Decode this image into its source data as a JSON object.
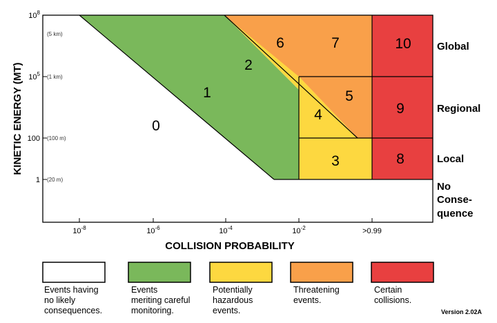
{
  "chart_data": {
    "type": "heatmap",
    "title": "",
    "xlabel": "COLLISION PROBABILITY",
    "ylabel": "KINETIC ENERGY (MT)",
    "x_ticks": [
      {
        "base": "10",
        "exp": "-8"
      },
      {
        "base": "10",
        "exp": "-6"
      },
      {
        "base": "10",
        "exp": "-4"
      },
      {
        "base": "10",
        "exp": "-2"
      },
      {
        "base": ">0.99",
        "exp": ""
      }
    ],
    "y_ticks": [
      {
        "base": "1",
        "exp": "",
        "size": "(20 m)"
      },
      {
        "base": "100",
        "exp": "",
        "size": "(100 m)"
      },
      {
        "base": "10",
        "exp": "5",
        "size": "(1 km)"
      },
      {
        "base": "10",
        "exp": "8",
        "size": "(5 km)"
      }
    ],
    "consequence_categories": [
      {
        "label": "Global",
        "lines": [
          "Global"
        ]
      },
      {
        "label": "Regional",
        "lines": [
          "Regional"
        ]
      },
      {
        "label": "Local",
        "lines": [
          "Local"
        ]
      },
      {
        "label": "No Conse- quence",
        "lines": [
          "No",
          "Conse-",
          "quence"
        ]
      }
    ],
    "zones": [
      {
        "value": 0,
        "category": "none",
        "color": "#ffffff"
      },
      {
        "value": 1,
        "category": "careful",
        "color": "#7ab85b"
      },
      {
        "value": 2,
        "category": "hazardous",
        "color": "#fdd840"
      },
      {
        "value": 3,
        "category": "hazardous",
        "color": "#fdd840"
      },
      {
        "value": 4,
        "category": "hazardous",
        "color": "#fdd840"
      },
      {
        "value": 5,
        "category": "threatening",
        "color": "#f9a04a"
      },
      {
        "value": 6,
        "category": "threatening",
        "color": "#f9a04a"
      },
      {
        "value": 7,
        "category": "threatening",
        "color": "#f9a04a"
      },
      {
        "value": 8,
        "category": "certain",
        "color": "#e84040"
      },
      {
        "value": 9,
        "category": "certain",
        "color": "#e84040"
      },
      {
        "value": 10,
        "category": "certain",
        "color": "#e84040"
      }
    ],
    "legend": [
      {
        "color": "#ffffff",
        "lines": [
          "Events having",
          "no likely",
          "consequences."
        ]
      },
      {
        "color": "#7ab85b",
        "lines": [
          "Events",
          "meriting careful",
          "monitoring."
        ]
      },
      {
        "color": "#fdd840",
        "lines": [
          "Potentially",
          "hazardous",
          "events."
        ]
      },
      {
        "color": "#f9a04a",
        "lines": [
          "Threatening",
          "events."
        ]
      },
      {
        "color": "#e84040",
        "lines": [
          "Certain",
          "collisions."
        ]
      }
    ],
    "grid": false,
    "legend_placement": "bottom"
  },
  "version": "Version 2.02A"
}
